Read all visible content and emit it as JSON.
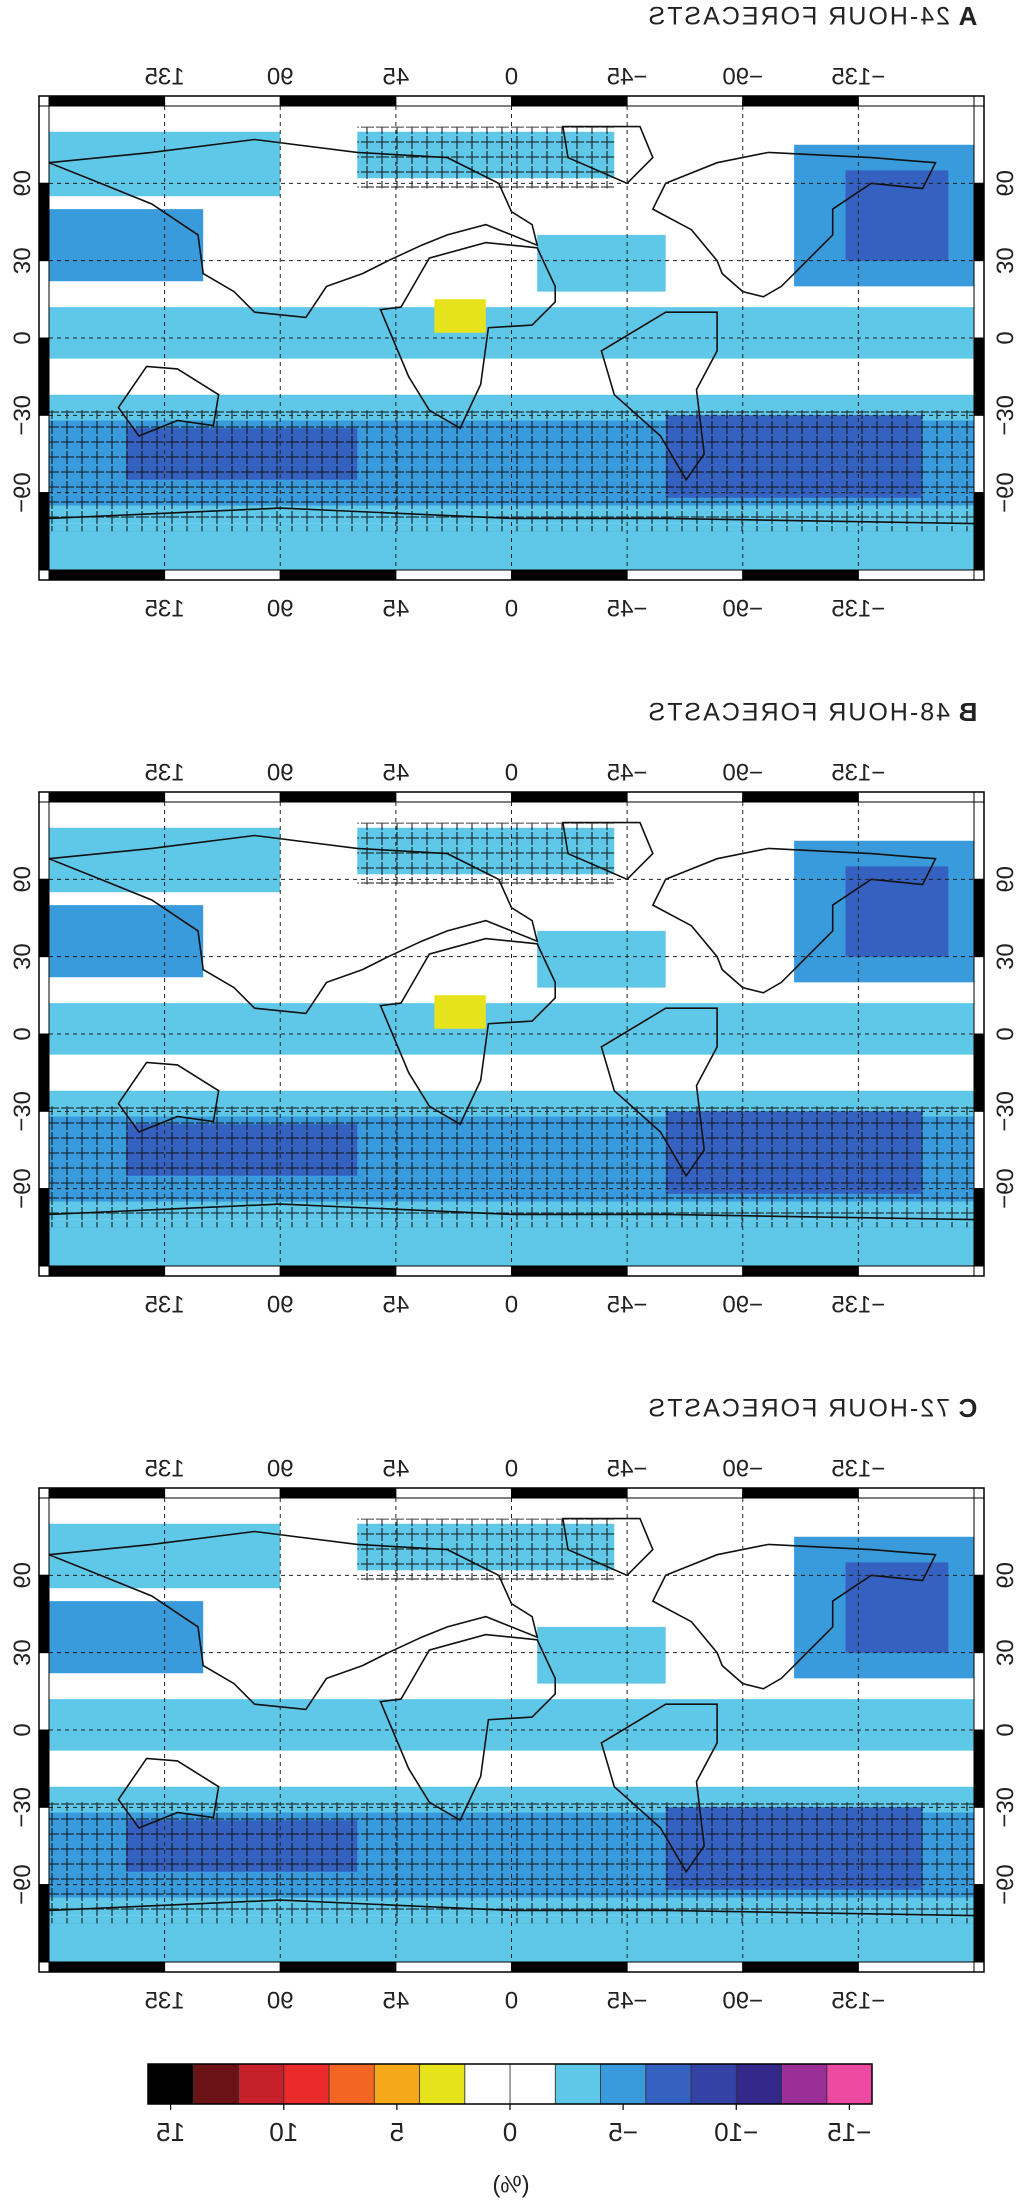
{
  "panels": [
    {
      "label": "A",
      "title": "24-HOUR FORECASTS"
    },
    {
      "label": "B",
      "title": "48-HOUR FORECASTS"
    },
    {
      "label": "C",
      "title": "72-HOUR FORECASTS"
    }
  ],
  "lon_ticks": [
    {
      "value": -135,
      "label": "−135"
    },
    {
      "value": -90,
      "label": "−90"
    },
    {
      "value": -45,
      "label": "−45"
    },
    0,
    45,
    90,
    135
  ],
  "lat_ticks": [
    60,
    30,
    0,
    {
      "value": -30,
      "label": "−30"
    },
    {
      "value": -60,
      "label": "−60"
    }
  ],
  "colorbar": {
    "colors": [
      "#ec4aa0",
      "#9a2f98",
      "#33288a",
      "#3442a6",
      "#3561c1",
      "#3a9bdc",
      "#5fc8e8",
      "#ffffff",
      "#ffffff",
      "#e6e31c",
      "#f7a71a",
      "#f26522",
      "#ea2a2a",
      "#c6202b",
      "#6a1215",
      "#000000"
    ],
    "lim": [
      -16,
      16
    ],
    "ticks": [
      {
        "value": -15,
        "label": "−15"
      },
      {
        "value": -10,
        "label": "−10"
      },
      {
        "value": -5,
        "label": "−5"
      },
      0,
      5,
      10,
      15
    ],
    "unit": "(%)"
  }
}
